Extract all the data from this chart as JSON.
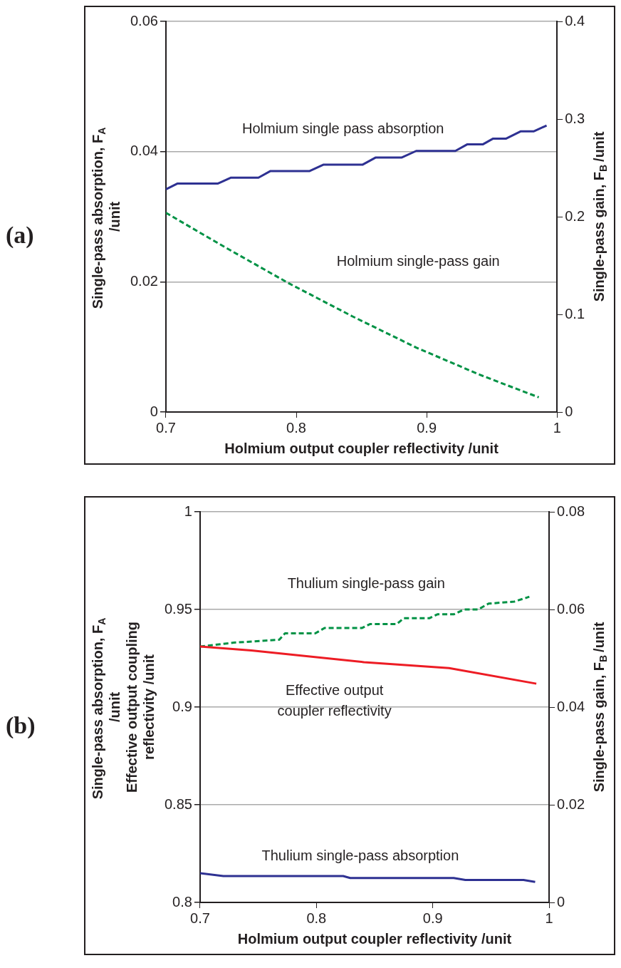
{
  "chart_data": [
    {
      "type": "line",
      "xlabel": "Holmium output coupler reflectivity /unit",
      "ylabel": "Single-pass absorption, F$_{A}$\n/unit",
      "y2label": "Single-pass gain, F$_{B}$/unit",
      "xlim": [
        0.7,
        1
      ],
      "xticks": [
        0.7,
        0.8,
        0.9,
        1
      ],
      "ylim": [
        0,
        0.06
      ],
      "yticks": [
        0,
        0.02,
        0.04,
        0.06
      ],
      "y2lim": [
        0,
        0.4
      ],
      "y2ticks": [
        0,
        0.1,
        0.2,
        0.3,
        0.4
      ],
      "grid": "y",
      "marker": "none",
      "series": [
        {
          "color": "#2e3192",
          "line_style": "solid",
          "x": [
            0.7,
            0.709,
            0.74,
            0.75,
            0.771,
            0.78,
            0.81,
            0.821,
            0.851,
            0.861,
            0.881,
            0.892,
            0.922,
            0.931,
            0.943,
            0.951,
            0.961,
            0.972,
            0.982,
            0.992
          ],
          "values": [
            0.0342,
            0.0351,
            0.0351,
            0.036,
            0.036,
            0.037,
            0.037,
            0.038,
            0.038,
            0.0391,
            0.0391,
            0.0401,
            0.0401,
            0.0411,
            0.0411,
            0.042,
            0.042,
            0.0431,
            0.0431,
            0.044
          ]
        },
        {
          "color": "#009245",
          "line_style": "dashed",
          "axis": "y2",
          "x": [
            0.7,
            0.745,
            0.794,
            0.843,
            0.892,
            0.941,
            0.986
          ],
          "values": [
            0.204,
            0.169,
            0.132,
            0.098,
            0.066,
            0.038,
            0.015
          ]
        }
      ],
      "annotations": [
        "(a)",
        "Holmium single pass absorption",
        "Holmium single-pass gain"
      ]
    },
    {
      "type": "line",
      "xlabel": "Holmium output coupler reflectivity /unit",
      "ylabel": "Single-pass absorption, F$_{A}$\n/unit\nEffective output coupling\nreflectivity /unit",
      "y2label": "Single-pass gain, F$_{B}$/unit",
      "xlim": [
        0.7,
        1
      ],
      "xticks": [
        0.7,
        0.8,
        0.9,
        1
      ],
      "ylim": [
        0.8,
        1
      ],
      "yticks": [
        0.8,
        0.85,
        0.9,
        0.95,
        1
      ],
      "y2lim": [
        0,
        0.08
      ],
      "y2ticks": [
        0,
        0.02,
        0.04,
        0.06,
        0.08
      ],
      "grid": "y",
      "marker": "none",
      "series": [
        {
          "color": "#2e3192",
          "line_style": "solid",
          "x": [
            0.7,
            0.72,
            0.823,
            0.829,
            0.918,
            0.928,
            0.978,
            0.988
          ],
          "values": [
            0.815,
            0.8135,
            0.8135,
            0.8125,
            0.8125,
            0.8115,
            0.8115,
            0.8105
          ]
        },
        {
          "color": "#ed1c24",
          "line_style": "solid",
          "x": [
            0.7,
            0.744,
            0.841,
            0.914,
            0.989
          ],
          "values": [
            0.931,
            0.929,
            0.923,
            0.92,
            0.912
          ]
        },
        {
          "color": "#009245",
          "line_style": "dashed",
          "axis": "y2",
          "x": [
            0.7,
            0.729,
            0.768,
            0.773,
            0.799,
            0.807,
            0.839,
            0.846,
            0.869,
            0.875,
            0.897,
            0.904,
            0.918,
            0.927,
            0.939,
            0.948,
            0.97,
            0.983
          ],
          "values": [
            0.0524,
            0.0532,
            0.0538,
            0.0551,
            0.0551,
            0.0562,
            0.0562,
            0.057,
            0.057,
            0.0582,
            0.0582,
            0.059,
            0.059,
            0.06,
            0.06,
            0.0612,
            0.0616,
            0.0626
          ]
        }
      ],
      "annotations": [
        "(b)",
        "Thulium single-pass gain",
        "Effective output\ncoupler reflectivity",
        "Thulium single-pass absorption"
      ]
    }
  ]
}
